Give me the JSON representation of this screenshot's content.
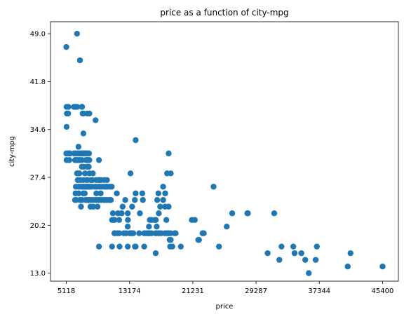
{
  "chart_data": {
    "type": "scatter",
    "title": "price as a function of city-mpg",
    "xlabel": "price",
    "ylabel": "city-mpg",
    "xlim": [
      3104,
      47414
    ],
    "ylim": [
      11.8,
      50.8
    ],
    "xticks": [
      5118,
      13174,
      21231,
      29287,
      37344,
      45400
    ],
    "yticks": [
      13.0,
      20.2,
      27.4,
      34.6,
      41.8,
      49.0
    ],
    "xtick_labels": [
      "5118",
      "13174",
      "21231",
      "29287",
      "37344",
      "45400"
    ],
    "ytick_labels": [
      "13.0",
      "20.2",
      "27.4",
      "34.6",
      "41.8",
      "49.0"
    ],
    "grid": false,
    "color": "#1f77b4",
    "series": [
      {
        "points": [
          [
            5118,
            47
          ],
          [
            6479,
            49
          ],
          [
            6855,
            45
          ],
          [
            5151,
            38
          ],
          [
            5195,
            37
          ],
          [
            5348,
            37
          ],
          [
            5389,
            38
          ],
          [
            5499,
            31
          ],
          [
            5572,
            31
          ],
          [
            6095,
            38
          ],
          [
            6229,
            38
          ],
          [
            6338,
            38
          ],
          [
            6488,
            38
          ],
          [
            7099,
            38
          ],
          [
            7126,
            38
          ],
          [
            7198,
            37
          ],
          [
            7299,
            37
          ],
          [
            7799,
            37
          ],
          [
            8058,
            37
          ],
          [
            8845,
            36
          ],
          [
            9279,
            30
          ],
          [
            5151,
            35
          ],
          [
            7295,
            34
          ],
          [
            13950,
            33
          ],
          [
            18150,
            31
          ],
          [
            5118,
            31
          ],
          [
            5151,
            30
          ],
          [
            5389,
            31
          ],
          [
            5399,
            31
          ],
          [
            5499,
            30
          ],
          [
            5572,
            31
          ],
          [
            6095,
            31
          ],
          [
            6189,
            31
          ],
          [
            6229,
            30
          ],
          [
            6295,
            30
          ],
          [
            6338,
            31
          ],
          [
            6377,
            30
          ],
          [
            6479,
            31
          ],
          [
            6488,
            31
          ],
          [
            6575,
            30
          ],
          [
            6649,
            31
          ],
          [
            6669,
            32
          ],
          [
            6692,
            31
          ],
          [
            6785,
            30
          ],
          [
            6795,
            31
          ],
          [
            6855,
            30
          ],
          [
            6918,
            31
          ],
          [
            6938,
            31
          ],
          [
            7053,
            31
          ],
          [
            7099,
            31
          ],
          [
            7126,
            30
          ],
          [
            7198,
            31
          ],
          [
            7295,
            31
          ],
          [
            7299,
            31
          ],
          [
            7349,
            31
          ],
          [
            7395,
            31
          ],
          [
            7463,
            31
          ],
          [
            7499,
            31
          ],
          [
            7603,
            31
          ],
          [
            7609,
            30
          ],
          [
            7689,
            31
          ],
          [
            7738,
            31
          ],
          [
            7775,
            30
          ],
          [
            7788,
            31
          ],
          [
            7799,
            31
          ],
          [
            7898,
            30
          ],
          [
            7957,
            31
          ],
          [
            8013,
            31
          ],
          [
            8058,
            30
          ],
          [
            6229,
            24
          ],
          [
            6295,
            25
          ],
          [
            6338,
            26
          ],
          [
            6377,
            24
          ],
          [
            6488,
            28
          ],
          [
            6575,
            27
          ],
          [
            6649,
            26
          ],
          [
            6669,
            28
          ],
          [
            6692,
            25
          ],
          [
            6785,
            28
          ],
          [
            6795,
            26
          ],
          [
            6855,
            24
          ],
          [
            6918,
            27
          ],
          [
            6938,
            24
          ],
          [
            6989,
            23
          ],
          [
            7053,
            26
          ],
          [
            7099,
            29
          ],
          [
            7126,
            24
          ],
          [
            7198,
            26
          ],
          [
            7295,
            25
          ],
          [
            7299,
            27
          ],
          [
            7349,
            29
          ],
          [
            7395,
            26
          ],
          [
            7463,
            25
          ],
          [
            7499,
            28
          ],
          [
            7603,
            24
          ],
          [
            7609,
            26
          ],
          [
            7689,
            27
          ],
          [
            7738,
            24
          ],
          [
            7775,
            26
          ],
          [
            7788,
            29
          ],
          [
            7799,
            27
          ],
          [
            7898,
            26
          ],
          [
            7957,
            24
          ],
          [
            7975,
            29
          ],
          [
            7995,
            26
          ],
          [
            8013,
            24
          ],
          [
            8058,
            28
          ],
          [
            8189,
            26
          ],
          [
            8195,
            23
          ],
          [
            8238,
            27
          ],
          [
            8249,
            24
          ],
          [
            8358,
            26
          ],
          [
            8449,
            27
          ],
          [
            8495,
            24
          ],
          [
            8499,
            28
          ],
          [
            8558,
            23
          ],
          [
            8778,
            26
          ],
          [
            8845,
            24
          ],
          [
            8916,
            27
          ],
          [
            8921,
            24
          ],
          [
            8948,
            25
          ],
          [
            8949,
            26
          ],
          [
            9095,
            23
          ],
          [
            9233,
            24
          ],
          [
            9258,
            27
          ],
          [
            9279,
            26
          ],
          [
            9298,
            27
          ],
          [
            9295,
            24
          ],
          [
            9370,
            26
          ],
          [
            9495,
            25
          ],
          [
            9538,
            27
          ],
          [
            9549,
            24
          ],
          [
            9639,
            26
          ],
          [
            9895,
            24
          ],
          [
            9959,
            27
          ],
          [
            9960,
            26
          ],
          [
            9980,
            24
          ],
          [
            10198,
            26
          ],
          [
            10245,
            24
          ],
          [
            10295,
            27
          ],
          [
            10345,
            26
          ],
          [
            10595,
            24
          ],
          [
            10698,
            26
          ],
          [
            10795,
            24
          ],
          [
            10898,
            26
          ],
          [
            10945,
            21
          ],
          [
            11048,
            22
          ],
          [
            11199,
            21
          ],
          [
            11245,
            19
          ],
          [
            11248,
            21
          ],
          [
            11259,
            19
          ],
          [
            11549,
            25
          ],
          [
            11595,
            19
          ],
          [
            11694,
            22
          ],
          [
            11845,
            21
          ],
          [
            11850,
            19
          ],
          [
            11900,
            17
          ],
          [
            12170,
            22
          ],
          [
            12290,
            23
          ],
          [
            12440,
            19
          ],
          [
            12629,
            24
          ],
          [
            12764,
            19
          ],
          [
            12940,
            20
          ],
          [
            12945,
            22
          ],
          [
            12964,
            21
          ],
          [
            13200,
            19
          ],
          [
            13295,
            28
          ],
          [
            13415,
            19
          ],
          [
            13495,
            19
          ],
          [
            13499,
            23
          ],
          [
            13645,
            19
          ],
          [
            13845,
            24
          ],
          [
            13860,
            17
          ],
          [
            13950,
            25
          ],
          [
            14399,
            19
          ],
          [
            14489,
            22
          ],
          [
            14869,
            24
          ],
          [
            15040,
            19
          ],
          [
            15250,
            19
          ],
          [
            15510,
            19
          ],
          [
            15580,
            19
          ],
          [
            15645,
            20
          ],
          [
            15690,
            19
          ],
          [
            15750,
            21
          ],
          [
            15985,
            19
          ],
          [
            15998,
            21
          ],
          [
            16430,
            21
          ],
          [
            16500,
            19
          ],
          [
            16503,
            16
          ],
          [
            16515,
            21
          ],
          [
            16558,
            19
          ],
          [
            16630,
            20
          ],
          [
            16695,
            24
          ],
          [
            16845,
            19
          ],
          [
            16900,
            22
          ],
          [
            16925,
            19
          ],
          [
            17075,
            23
          ],
          [
            17199,
            19
          ],
          [
            17450,
            24
          ],
          [
            17669,
            19
          ],
          [
            17710,
            23
          ],
          [
            17859,
            21
          ],
          [
            17950,
            19
          ],
          [
            18150,
            19
          ],
          [
            18280,
            18
          ],
          [
            18344,
            17
          ],
          [
            18399,
            19
          ],
          [
            18420,
            18
          ],
          [
            18620,
            17
          ],
          [
            18920,
            19
          ],
          [
            19045,
            19
          ],
          [
            19699,
            17
          ],
          [
            21105,
            21
          ],
          [
            21485,
            21
          ],
          [
            21920,
            18
          ],
          [
            22018,
            18
          ],
          [
            9279,
            17
          ],
          [
            10945,
            17
          ],
          [
            12945,
            17
          ],
          [
            13950,
            17
          ],
          [
            15040,
            17
          ],
          [
            14800,
            25
          ],
          [
            16845,
            25
          ],
          [
            17450,
            26
          ],
          [
            17710,
            25
          ],
          [
            17950,
            28
          ],
          [
            18420,
            28
          ],
          [
            18150,
            23
          ],
          [
            22470,
            19
          ],
          [
            22625,
            19
          ],
          [
            23875,
            26
          ],
          [
            24565,
            17
          ],
          [
            25552,
            20
          ],
          [
            26249,
            22
          ],
          [
            28176,
            22
          ],
          [
            28248,
            22
          ],
          [
            30760,
            16
          ],
          [
            31600,
            22
          ],
          [
            32250,
            15
          ],
          [
            32528,
            17
          ],
          [
            34028,
            17
          ],
          [
            34184,
            16
          ],
          [
            35056,
            16
          ],
          [
            35550,
            15
          ],
          [
            36000,
            13
          ],
          [
            36880,
            15
          ],
          [
            37028,
            17
          ],
          [
            40960,
            14
          ],
          [
            41315,
            16
          ],
          [
            45400,
            14
          ]
        ]
      }
    ]
  }
}
